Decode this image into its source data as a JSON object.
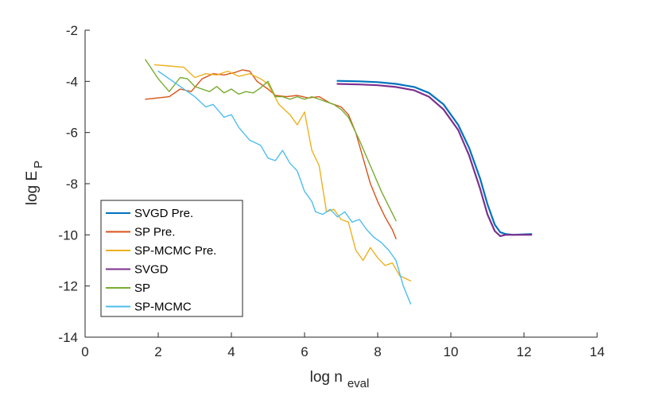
{
  "chart_data": {
    "type": "line",
    "title": "",
    "xlabel": {
      "main": "log n",
      "sub": "eval"
    },
    "ylabel": {
      "main": "log E",
      "sub": "P"
    },
    "xlim": [
      0,
      14
    ],
    "ylim": [
      -14,
      -2
    ],
    "xticks": [
      0,
      2,
      4,
      6,
      8,
      10,
      12,
      14
    ],
    "yticks": [
      -14,
      -12,
      -10,
      -8,
      -6,
      -4,
      -2
    ],
    "xtick_labels": [
      "0",
      "2",
      "4",
      "6",
      "8",
      "10",
      "12",
      "14"
    ],
    "ytick_labels": [
      "-14",
      "-12",
      "-10",
      "-8",
      "-6",
      "-4",
      "-2"
    ],
    "grid": false,
    "legend_position": "bottom-left",
    "series": [
      {
        "name": "SVGD Pre.",
        "color": "#0072BD",
        "x": [
          6.9,
          7.5,
          8.0,
          8.5,
          9.0,
          9.4,
          9.8,
          10.2,
          10.5,
          10.8,
          11.0,
          11.2,
          11.35,
          11.5,
          11.7,
          12.0,
          12.2
        ],
        "y": [
          -3.98,
          -4.0,
          -4.03,
          -4.1,
          -4.22,
          -4.45,
          -4.9,
          -5.7,
          -6.6,
          -7.8,
          -8.8,
          -9.6,
          -9.9,
          -9.97,
          -10.0,
          -9.98,
          -9.97
        ]
      },
      {
        "name": "SP Pre.",
        "color": "#D95319",
        "x": [
          1.65,
          2.3,
          2.6,
          2.9,
          3.2,
          3.5,
          3.8,
          4.1,
          4.3,
          4.5,
          4.7,
          5.0,
          5.2,
          5.5,
          5.8,
          6.1,
          6.4,
          6.7,
          7.0,
          7.2,
          7.4,
          7.6,
          7.8,
          8.0,
          8.2,
          8.4,
          8.5
        ],
        "y": [
          -4.7,
          -4.6,
          -4.3,
          -4.4,
          -3.9,
          -3.7,
          -3.75,
          -3.65,
          -3.55,
          -3.6,
          -4.0,
          -4.3,
          -4.55,
          -4.6,
          -4.55,
          -4.65,
          -4.6,
          -4.85,
          -5.0,
          -5.3,
          -6.0,
          -7.0,
          -8.0,
          -8.7,
          -9.3,
          -9.8,
          -10.15
        ]
      },
      {
        "name": "SP-MCMC Pre.",
        "color": "#EDB120",
        "x": [
          1.9,
          2.3,
          2.7,
          3.0,
          3.3,
          3.6,
          3.9,
          4.2,
          4.5,
          4.8,
          5.0,
          5.3,
          5.6,
          5.8,
          6.0,
          6.2,
          6.4,
          6.6,
          6.8,
          7.0,
          7.2,
          7.4,
          7.6,
          7.8,
          8.0,
          8.2,
          8.4,
          8.6,
          8.9
        ],
        "y": [
          -3.35,
          -3.4,
          -3.45,
          -3.85,
          -3.7,
          -3.75,
          -3.6,
          -3.8,
          -3.7,
          -3.9,
          -4.1,
          -4.9,
          -5.3,
          -5.7,
          -5.2,
          -6.7,
          -7.3,
          -9.1,
          -9.0,
          -9.4,
          -9.5,
          -10.6,
          -11.0,
          -10.5,
          -10.9,
          -11.2,
          -11.1,
          -11.6,
          -11.8
        ]
      },
      {
        "name": "SVGD",
        "color": "#7E2F8E",
        "x": [
          6.9,
          7.5,
          8.0,
          8.5,
          9.0,
          9.4,
          9.8,
          10.2,
          10.5,
          10.8,
          11.0,
          11.2,
          11.35,
          11.5,
          11.7,
          12.0,
          12.2
        ],
        "y": [
          -4.1,
          -4.12,
          -4.15,
          -4.22,
          -4.35,
          -4.6,
          -5.1,
          -5.9,
          -6.9,
          -8.2,
          -9.2,
          -9.85,
          -10.05,
          -10.0,
          -10.0,
          -10.0,
          -10.0
        ]
      },
      {
        "name": "SP",
        "color": "#77AC30",
        "x": [
          1.65,
          2.0,
          2.3,
          2.6,
          2.8,
          3.0,
          3.2,
          3.4,
          3.6,
          3.8,
          4.0,
          4.2,
          4.4,
          4.6,
          4.8,
          5.0,
          5.2,
          5.4,
          5.6,
          5.8,
          6.0,
          6.2,
          6.5,
          6.8,
          7.0,
          7.2,
          7.5,
          7.8,
          8.1,
          8.5
        ],
        "y": [
          -3.15,
          -3.9,
          -4.4,
          -3.85,
          -3.9,
          -4.2,
          -4.3,
          -4.4,
          -4.2,
          -4.45,
          -4.3,
          -4.5,
          -4.4,
          -4.45,
          -4.25,
          -4.0,
          -4.6,
          -4.6,
          -4.7,
          -4.6,
          -4.7,
          -4.6,
          -4.75,
          -4.9,
          -5.1,
          -5.4,
          -6.3,
          -7.3,
          -8.3,
          -9.45
        ]
      },
      {
        "name": "SP-MCMC",
        "color": "#4DBEEE",
        "x": [
          2.0,
          2.4,
          2.8,
          3.0,
          3.3,
          3.5,
          3.8,
          4.0,
          4.2,
          4.5,
          4.8,
          5.0,
          5.2,
          5.4,
          5.6,
          5.8,
          6.0,
          6.2,
          6.3,
          6.5,
          6.7,
          6.9,
          7.1,
          7.3,
          7.5,
          7.7,
          7.9,
          8.1,
          8.3,
          8.5,
          8.7,
          8.9
        ],
        "y": [
          -3.6,
          -4.0,
          -4.4,
          -4.6,
          -5.0,
          -4.9,
          -5.4,
          -5.3,
          -5.8,
          -6.3,
          -6.5,
          -7.0,
          -7.1,
          -6.7,
          -7.2,
          -7.5,
          -8.3,
          -8.7,
          -9.1,
          -9.2,
          -9.0,
          -9.3,
          -9.1,
          -9.5,
          -9.4,
          -9.8,
          -10.1,
          -10.3,
          -10.6,
          -11.0,
          -12.0,
          -12.7
        ]
      }
    ]
  }
}
